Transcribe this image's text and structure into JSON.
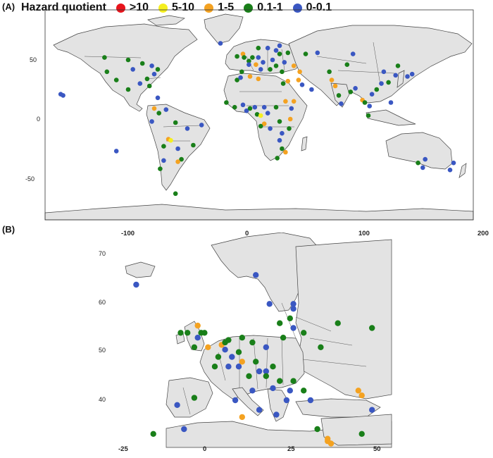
{
  "panels": {
    "a": "(A)",
    "b": "(B)"
  },
  "legend": {
    "title": "Hazard quotient",
    "items": [
      {
        "label": ">10",
        "color": "#e8141c"
      },
      {
        "label": "5-10",
        "color": "#f5ef1f"
      },
      {
        "label": "1-5",
        "color": "#f4a221"
      },
      {
        "label": "0.1-1",
        "color": "#197f19"
      },
      {
        "label": "0-0.1",
        "color": "#3a57c2"
      }
    ]
  },
  "world_axes": {
    "x_ticks": [
      "-100",
      "0",
      "100",
      "200"
    ],
    "y_ticks": [
      "50",
      "0",
      "-50"
    ]
  },
  "europe_axes": {
    "x_ticks": [
      "-25",
      "0",
      "25",
      "50"
    ],
    "y_ticks": [
      "70",
      "60",
      "50",
      "40"
    ]
  },
  "world_points": [
    {
      "lon": -120,
      "lat": 52,
      "c": 3
    },
    {
      "lon": -100,
      "lat": 50,
      "c": 3
    },
    {
      "lon": -96,
      "lat": 42,
      "c": 4
    },
    {
      "lon": -88,
      "lat": 47,
      "c": 3
    },
    {
      "lon": -80,
      "lat": 45,
      "c": 4
    },
    {
      "lon": -75,
      "lat": 42,
      "c": 3
    },
    {
      "lon": -78,
      "lat": 38,
      "c": 4
    },
    {
      "lon": -84,
      "lat": 34,
      "c": 3
    },
    {
      "lon": -90,
      "lat": 30,
      "c": 4
    },
    {
      "lon": -110,
      "lat": 33,
      "c": 3
    },
    {
      "lon": -118,
      "lat": 40,
      "c": 3
    },
    {
      "lon": -100,
      "lat": 25,
      "c": 3
    },
    {
      "lon": -82,
      "lat": 28,
      "c": 3
    },
    {
      "lon": -157,
      "lat": 21,
      "c": 4
    },
    {
      "lon": -155,
      "lat": 20,
      "c": 4
    },
    {
      "lon": -75,
      "lat": 18,
      "c": 4
    },
    {
      "lon": -78,
      "lat": 9,
      "c": 2
    },
    {
      "lon": -74,
      "lat": 5,
      "c": 3
    },
    {
      "lon": -68,
      "lat": 8,
      "c": 4
    },
    {
      "lon": -80,
      "lat": -2,
      "c": 4
    },
    {
      "lon": -60,
      "lat": -3,
      "c": 3
    },
    {
      "lon": -50,
      "lat": -8,
      "c": 4
    },
    {
      "lon": -38,
      "lat": -5,
      "c": 4
    },
    {
      "lon": -66,
      "lat": -17,
      "c": 2
    },
    {
      "lon": -64,
      "lat": -18,
      "c": 1
    },
    {
      "lon": -70,
      "lat": -23,
      "c": 3
    },
    {
      "lon": -58,
      "lat": -25,
      "c": 4
    },
    {
      "lon": -45,
      "lat": -22,
      "c": 3
    },
    {
      "lon": -55,
      "lat": -34,
      "c": 3
    },
    {
      "lon": -58,
      "lat": -36,
      "c": 2
    },
    {
      "lon": -70,
      "lat": -35,
      "c": 4
    },
    {
      "lon": -73,
      "lat": -42,
      "c": 3
    },
    {
      "lon": -60,
      "lat": -63,
      "c": 3
    },
    {
      "lon": -110,
      "lat": -27,
      "c": 4
    },
    {
      "lon": -22,
      "lat": 64,
      "c": 4
    },
    {
      "lon": -8,
      "lat": 53,
      "c": 3
    },
    {
      "lon": -3,
      "lat": 55,
      "c": 2
    },
    {
      "lon": -2,
      "lat": 52,
      "c": 3
    },
    {
      "lon": 2,
      "lat": 49,
      "c": 3
    },
    {
      "lon": 5,
      "lat": 52,
      "c": 3
    },
    {
      "lon": 10,
      "lat": 52,
      "c": 4
    },
    {
      "lon": 14,
      "lat": 48,
      "c": 4
    },
    {
      "lon": 8,
      "lat": 46,
      "c": 2
    },
    {
      "lon": 2,
      "lat": 46,
      "c": 4
    },
    {
      "lon": -4,
      "lat": 40,
      "c": 3
    },
    {
      "lon": 12,
      "lat": 42,
      "c": 4
    },
    {
      "lon": 20,
      "lat": 42,
      "c": 3
    },
    {
      "lon": 25,
      "lat": 45,
      "c": 3
    },
    {
      "lon": 22,
      "lat": 50,
      "c": 4
    },
    {
      "lon": 25,
      "lat": 58,
      "c": 4
    },
    {
      "lon": 18,
      "lat": 60,
      "c": 4
    },
    {
      "lon": 10,
      "lat": 60,
      "c": 3
    },
    {
      "lon": 28,
      "lat": 55,
      "c": 3
    },
    {
      "lon": 35,
      "lat": 56,
      "c": 3
    },
    {
      "lon": 32,
      "lat": 48,
      "c": 4
    },
    {
      "lon": 30,
      "lat": 40,
      "c": 3
    },
    {
      "lon": 40,
      "lat": 45,
      "c": 2
    },
    {
      "lon": 45,
      "lat": 40,
      "c": 2
    },
    {
      "lon": 50,
      "lat": 55,
      "c": 3
    },
    {
      "lon": 28,
      "lat": 62,
      "c": 4
    },
    {
      "lon": -8,
      "lat": 33,
      "c": 3
    },
    {
      "lon": -5,
      "lat": 35,
      "c": 4
    },
    {
      "lon": 3,
      "lat": 36,
      "c": 2
    },
    {
      "lon": 10,
      "lat": 34,
      "c": 2
    },
    {
      "lon": 31,
      "lat": 30,
      "c": 3
    },
    {
      "lon": 35,
      "lat": 32,
      "c": 2
    },
    {
      "lon": 44,
      "lat": 33,
      "c": 2
    },
    {
      "lon": 47,
      "lat": 29,
      "c": 4
    },
    {
      "lon": 55,
      "lat": 25,
      "c": 4
    },
    {
      "lon": 40,
      "lat": 15,
      "c": 2
    },
    {
      "lon": 38,
      "lat": 9,
      "c": 4
    },
    {
      "lon": 33,
      "lat": 15,
      "c": 2
    },
    {
      "lon": -17,
      "lat": 14,
      "c": 3
    },
    {
      "lon": -10,
      "lat": 10,
      "c": 3
    },
    {
      "lon": -3,
      "lat": 12,
      "c": 4
    },
    {
      "lon": 0,
      "lat": 7,
      "c": 4
    },
    {
      "lon": 3,
      "lat": 9,
      "c": 3
    },
    {
      "lon": 7,
      "lat": 10,
      "c": 4
    },
    {
      "lon": 9,
      "lat": 4,
      "c": 3
    },
    {
      "lon": 12,
      "lat": 3,
      "c": 1
    },
    {
      "lon": 15,
      "lat": 10,
      "c": 4
    },
    {
      "lon": 18,
      "lat": 5,
      "c": 4
    },
    {
      "lon": 25,
      "lat": 10,
      "c": 3
    },
    {
      "lon": 15,
      "lat": -4,
      "c": 2
    },
    {
      "lon": 12,
      "lat": -6,
      "c": 3
    },
    {
      "lon": 20,
      "lat": -8,
      "c": 4
    },
    {
      "lon": 28,
      "lat": -2,
      "c": 3
    },
    {
      "lon": 30,
      "lat": -12,
      "c": 4
    },
    {
      "lon": 28,
      "lat": -18,
      "c": 4
    },
    {
      "lon": 30,
      "lat": -25,
      "c": 3
    },
    {
      "lon": 33,
      "lat": -28,
      "c": 2
    },
    {
      "lon": 26,
      "lat": -33,
      "c": 3
    },
    {
      "lon": 36,
      "lat": -8,
      "c": 3
    },
    {
      "lon": 37,
      "lat": 0,
      "c": 2
    },
    {
      "lon": 60,
      "lat": 56,
      "c": 4
    },
    {
      "lon": 70,
      "lat": 40,
      "c": 3
    },
    {
      "lon": 72,
      "lat": 33,
      "c": 2
    },
    {
      "lon": 75,
      "lat": 28,
      "c": 2
    },
    {
      "lon": 78,
      "lat": 20,
      "c": 3
    },
    {
      "lon": 80,
      "lat": 13,
      "c": 4
    },
    {
      "lon": 88,
      "lat": 23,
      "c": 3
    },
    {
      "lon": 92,
      "lat": 26,
      "c": 4
    },
    {
      "lon": 98,
      "lat": 16,
      "c": 2
    },
    {
      "lon": 100,
      "lat": 14,
      "c": 3
    },
    {
      "lon": 104,
      "lat": 11,
      "c": 4
    },
    {
      "lon": 106,
      "lat": 21,
      "c": 4
    },
    {
      "lon": 103,
      "lat": 3,
      "c": 3
    },
    {
      "lon": 110,
      "lat": 25,
      "c": 3
    },
    {
      "lon": 114,
      "lat": 30,
      "c": 4
    },
    {
      "lon": 116,
      "lat": 40,
      "c": 4
    },
    {
      "lon": 120,
      "lat": 31,
      "c": 3
    },
    {
      "lon": 126,
      "lat": 37,
      "c": 4
    },
    {
      "lon": 128,
      "lat": 45,
      "c": 3
    },
    {
      "lon": 136,
      "lat": 36,
      "c": 4
    },
    {
      "lon": 140,
      "lat": 38,
      "c": 4
    },
    {
      "lon": 122,
      "lat": 14,
      "c": 4
    },
    {
      "lon": 85,
      "lat": 46,
      "c": 3
    },
    {
      "lon": 90,
      "lat": 55,
      "c": 4
    },
    {
      "lon": 151,
      "lat": -34,
      "c": 4
    },
    {
      "lon": 145,
      "lat": -37,
      "c": 3
    },
    {
      "lon": 149,
      "lat": -41,
      "c": 4
    },
    {
      "lon": 175,
      "lat": -37,
      "c": 4
    },
    {
      "lon": 172,
      "lat": -43,
      "c": 4
    }
  ],
  "europe_points": [
    {
      "lon": -21,
      "lat": 64,
      "c": 4
    },
    {
      "lon": 14,
      "lat": 66,
      "c": 4
    },
    {
      "lon": 18,
      "lat": 60,
      "c": 4
    },
    {
      "lon": 25,
      "lat": 60,
      "c": 4
    },
    {
      "lon": 25,
      "lat": 59,
      "c": 4
    },
    {
      "lon": 24,
      "lat": 57,
      "c": 3
    },
    {
      "lon": 21,
      "lat": 56,
      "c": 3
    },
    {
      "lon": 25,
      "lat": 55,
      "c": 4
    },
    {
      "lon": 28,
      "lat": 54,
      "c": 3
    },
    {
      "lon": 38,
      "lat": 56,
      "c": 3
    },
    {
      "lon": 48,
      "lat": 55,
      "c": 3
    },
    {
      "lon": -8,
      "lat": 54,
      "c": 3
    },
    {
      "lon": -6,
      "lat": 54,
      "c": 3
    },
    {
      "lon": -3,
      "lat": 55.5,
      "c": 2
    },
    {
      "lon": -2,
      "lat": 54,
      "c": 3
    },
    {
      "lon": -1,
      "lat": 54,
      "c": 3
    },
    {
      "lon": -3,
      "lat": 53,
      "c": 4
    },
    {
      "lon": 0,
      "lat": 51,
      "c": 2
    },
    {
      "lon": -4,
      "lat": 51,
      "c": 3
    },
    {
      "lon": 4,
      "lat": 51.5,
      "c": 2
    },
    {
      "lon": 5,
      "lat": 52,
      "c": 3
    },
    {
      "lon": 6,
      "lat": 52.5,
      "c": 3
    },
    {
      "lon": 5,
      "lat": 50.5,
      "c": 4
    },
    {
      "lon": 10,
      "lat": 53,
      "c": 3
    },
    {
      "lon": 13,
      "lat": 52,
      "c": 3
    },
    {
      "lon": 17,
      "lat": 51,
      "c": 4
    },
    {
      "lon": 22,
      "lat": 53,
      "c": 3
    },
    {
      "lon": 33,
      "lat": 51,
      "c": 3
    },
    {
      "lon": 9,
      "lat": 50,
      "c": 3
    },
    {
      "lon": 7,
      "lat": 49,
      "c": 4
    },
    {
      "lon": 3,
      "lat": 49,
      "c": 3
    },
    {
      "lon": 10,
      "lat": 48,
      "c": 2
    },
    {
      "lon": 9,
      "lat": 47,
      "c": 4
    },
    {
      "lon": 6,
      "lat": 47,
      "c": 4
    },
    {
      "lon": 2,
      "lat": 47,
      "c": 3
    },
    {
      "lon": 14,
      "lat": 48,
      "c": 3
    },
    {
      "lon": 19,
      "lat": 47,
      "c": 3
    },
    {
      "lon": 15,
      "lat": 46,
      "c": 4
    },
    {
      "lon": 17,
      "lat": 46,
      "c": 4
    },
    {
      "lon": 12,
      "lat": 45,
      "c": 3
    },
    {
      "lon": 17,
      "lat": 45,
      "c": 3
    },
    {
      "lon": 21,
      "lat": 44,
      "c": 3
    },
    {
      "lon": 25,
      "lat": 44,
      "c": 3
    },
    {
      "lon": 19,
      "lat": 42.5,
      "c": 4
    },
    {
      "lon": 13,
      "lat": 42,
      "c": 4
    },
    {
      "lon": 24,
      "lat": 42,
      "c": 4
    },
    {
      "lon": 28,
      "lat": 42,
      "c": 3
    },
    {
      "lon": 23,
      "lat": 40,
      "c": 4
    },
    {
      "lon": 30,
      "lat": 40,
      "c": 4
    },
    {
      "lon": 44,
      "lat": 42,
      "c": 2
    },
    {
      "lon": 45,
      "lat": 41,
      "c": 2
    },
    {
      "lon": 48,
      "lat": 38,
      "c": 4
    },
    {
      "lon": -9,
      "lat": 39,
      "c": 4
    },
    {
      "lon": -4,
      "lat": 40.5,
      "c": 3
    },
    {
      "lon": 8,
      "lat": 40,
      "c": 4
    },
    {
      "lon": 15,
      "lat": 38,
      "c": 4
    },
    {
      "lon": 10,
      "lat": 36.5,
      "c": 2
    },
    {
      "lon": 20,
      "lat": 37,
      "c": 4
    },
    {
      "lon": -7,
      "lat": 34,
      "c": 4
    },
    {
      "lon": -16,
      "lat": 33,
      "c": 3
    },
    {
      "lon": 32,
      "lat": 34,
      "c": 3
    },
    {
      "lon": 35,
      "lat": 32,
      "c": 2
    },
    {
      "lon": 35,
      "lat": 31.5,
      "c": 2
    },
    {
      "lon": 36,
      "lat": 31,
      "c": 2
    },
    {
      "lon": 45,
      "lat": 33,
      "c": 3
    }
  ]
}
